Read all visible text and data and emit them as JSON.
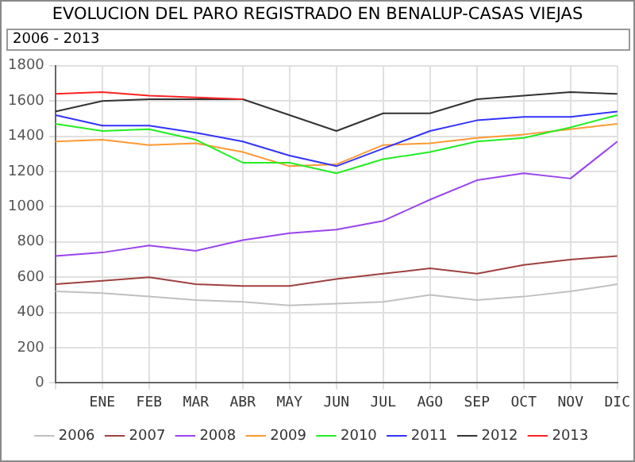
{
  "chart_data": {
    "type": "line",
    "title": "EVOLUCION DEL PARO REGISTRADO EN BENALUP-CASAS VIEJAS",
    "subtitle": "2006 - 2013",
    "categories": [
      null,
      "ENE",
      "FEB",
      "MAR",
      "ABR",
      "MAY",
      "JUN",
      "JUL",
      "AGO",
      "SEP",
      "OCT",
      "NOV",
      "DIC"
    ],
    "series": [
      {
        "name": "2006",
        "color": "#c0c0c0",
        "values": [
          520,
          510,
          490,
          470,
          460,
          440,
          450,
          460,
          500,
          470,
          490,
          520,
          560
        ]
      },
      {
        "name": "2007",
        "color": "#a04040",
        "values": [
          560,
          580,
          600,
          560,
          550,
          550,
          590,
          620,
          650,
          620,
          670,
          700,
          720
        ]
      },
      {
        "name": "2008",
        "color": "#9944ee",
        "values": [
          720,
          740,
          780,
          750,
          810,
          850,
          870,
          920,
          1040,
          1150,
          1190,
          1160,
          1370
        ]
      },
      {
        "name": "2009",
        "color": "#ff9933",
        "values": [
          1370,
          1380,
          1350,
          1360,
          1310,
          1230,
          1240,
          1350,
          1360,
          1390,
          1410,
          1440,
          1470
        ]
      },
      {
        "name": "2010",
        "color": "#22ee22",
        "values": [
          1470,
          1430,
          1440,
          1380,
          1250,
          1250,
          1190,
          1270,
          1310,
          1370,
          1390,
          1450,
          1520
        ]
      },
      {
        "name": "2011",
        "color": "#3333ff",
        "values": [
          1520,
          1460,
          1460,
          1420,
          1370,
          1290,
          1230,
          1330,
          1430,
          1490,
          1510,
          1510,
          1540
        ]
      },
      {
        "name": "2012",
        "color": "#333333",
        "values": [
          1540,
          1600,
          1610,
          1610,
          1610,
          1520,
          1430,
          1530,
          1530,
          1610,
          1630,
          1650,
          1640
        ]
      },
      {
        "name": "2013",
        "color": "#ff2222",
        "values": [
          1640,
          1650,
          1630,
          1620,
          1610,
          null,
          null,
          null,
          null,
          null,
          null,
          null,
          null
        ]
      }
    ],
    "ylim": [
      0,
      1800
    ],
    "yticks": [
      0,
      200,
      400,
      600,
      800,
      1000,
      1200,
      1400,
      1600,
      1800
    ],
    "grid": true,
    "legend": "bottom",
    "marker": "none",
    "line_style": "solid"
  }
}
